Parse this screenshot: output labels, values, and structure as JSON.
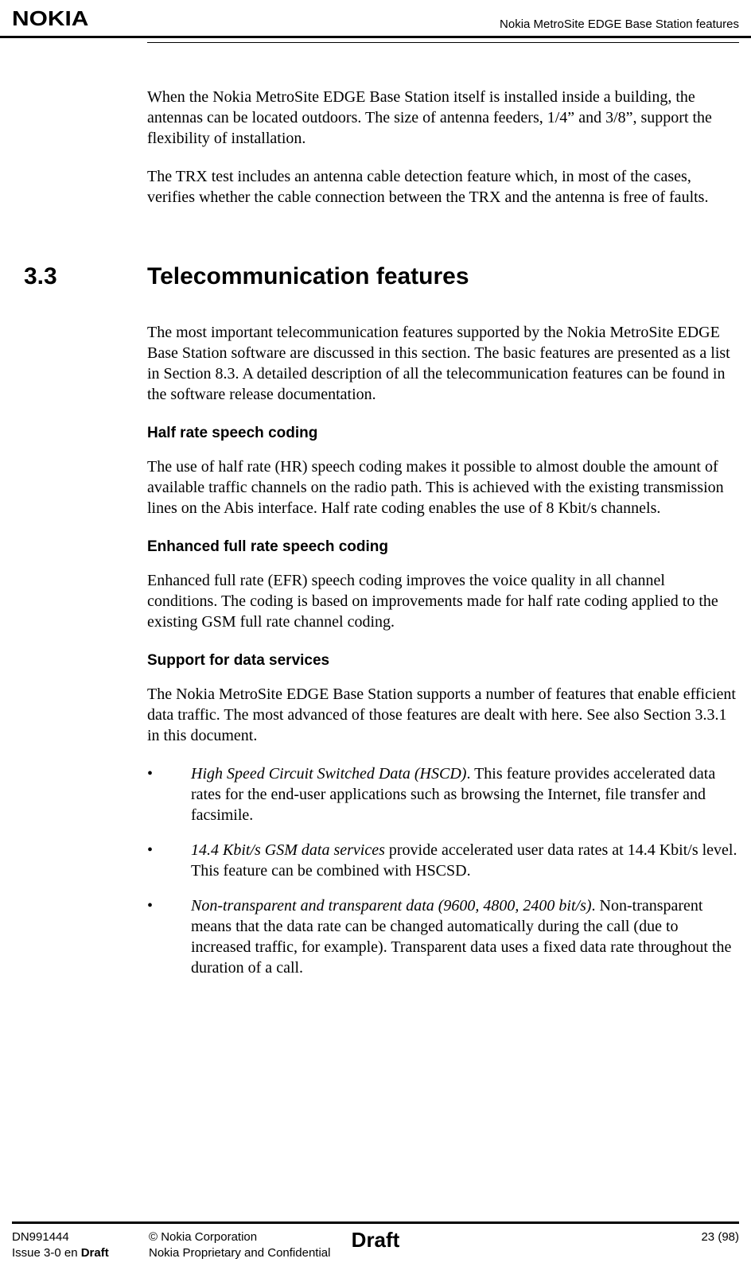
{
  "header": {
    "logo": "NOKIA",
    "title": "Nokia MetroSite EDGE Base Station features"
  },
  "intro": {
    "p1": "When the Nokia MetroSite EDGE Base Station itself is installed inside a building, the antennas can be located outdoors. The size of antenna feeders, 1/4” and 3/8”, support the flexibility of installation.",
    "p2": "The TRX test includes an antenna cable detection feature which, in most of the cases, verifies whether the cable connection between the TRX and the antenna is free of faults."
  },
  "section": {
    "number": "3.3",
    "title": "Telecommunication features",
    "p1": "The most important telecommunication features supported by the Nokia MetroSite EDGE Base Station software are discussed in this section. The basic features are presented as a list in Section 8.3. A detailed description of all the telecommunication features can be found in the software release documentation.",
    "h_half": "Half rate speech coding",
    "p_half": "The use of half rate (HR) speech coding makes it possible to almost double the amount of available traffic channels on the radio path. This is achieved with the existing transmission lines on the Abis interface. Half rate coding enables the use of 8 Kbit/s channels.",
    "h_efr": "Enhanced full rate speech coding",
    "p_efr": "Enhanced full rate (EFR) speech coding improves the voice quality in all channel conditions. The coding is based on improvements made for half rate coding applied to the existing GSM full rate channel coding.",
    "h_data": "Support for data services",
    "p_data": "The Nokia MetroSite EDGE Base Station supports a number of features that enable efficient data traffic. The most advanced of those features are dealt with here. See also Section 3.3.1 in this document.",
    "bullets": {
      "b1_em": "High Speed Circuit Switched Data (HSCD)",
      "b1_rest": ". This feature provides accelerated data rates for the end-user applications such as browsing the Internet, file transfer and facsimile.",
      "b2_em": "14.4 Kbit/s GSM data services",
      "b2_rest": " provide accelerated user data rates at 14.4 Kbit/s level. This feature can be combined with HSCSD.",
      "b3_em": "Non-transparent and transparent data (9600, 4800, 2400 bit/s)",
      "b3_rest": ". Non-transparent means that the data rate can be changed automatically during the call (due to increased traffic, for example). Transparent data uses a fixed data rate throughout the duration of a call."
    }
  },
  "footer": {
    "doc_id": "DN991444",
    "issue_pre": "Issue 3-0 en ",
    "issue_draft": "Draft",
    "copyright": "© Nokia Corporation",
    "confidential": "Nokia Proprietary and Confidential",
    "draft": "Draft",
    "page": "23 (98)"
  }
}
